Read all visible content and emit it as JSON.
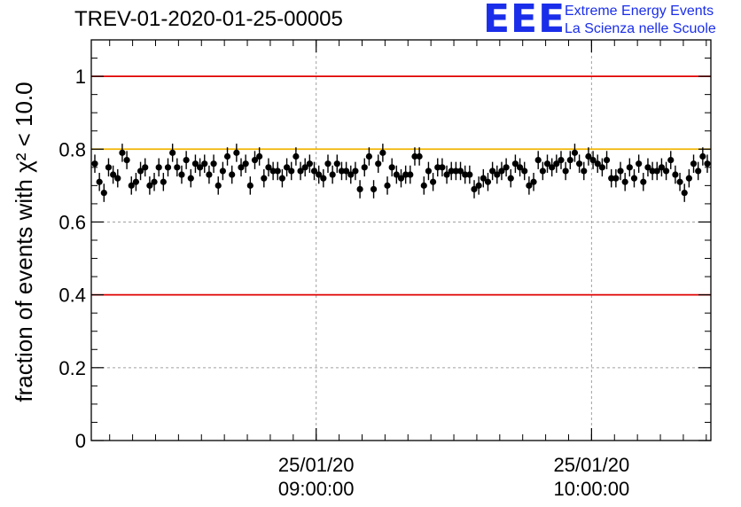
{
  "header": {
    "title": "TREV-01-2020-01-25-00005",
    "logo_text": "EEE",
    "logo_line1": "Extreme Energy Events",
    "logo_line2": "La Scienza nelle Scuole"
  },
  "colors": {
    "logo": "#1a2eea",
    "threshold_line": "#e00000",
    "reference_line": "#f0b400",
    "points": "#000000",
    "grid": "#a0a0a0"
  },
  "chart_data": {
    "type": "scatter",
    "title": "TREV-01-2020-01-25-00005",
    "xlabel": "",
    "ylabel": "fraction of events with χ² < 10.0",
    "ylim": [
      0,
      1.1
    ],
    "y_ticks": [
      "0",
      "0.2",
      "0.4",
      "0.6",
      "0.8",
      "1"
    ],
    "x_axis_type": "time",
    "x_range": [
      "25/01/20 08:11",
      "25/01/20 10:26"
    ],
    "x_tick_labels": [
      {
        "time": "25/01/20 09:00:00",
        "date": "25/01/20",
        "clock": "09:00:00"
      },
      {
        "time": "25/01/20 10:00:00",
        "date": "25/01/20",
        "clock": "10:00:00"
      }
    ],
    "grid": true,
    "horizontal_lines": [
      {
        "y": 1.0,
        "color": "#e00000"
      },
      {
        "y": 0.8,
        "color": "#f0b400"
      },
      {
        "y": 0.4,
        "color": "#e00000"
      }
    ],
    "error_bar": 0.025,
    "series": [
      {
        "marker": "circle",
        "color": "#000000",
        "values": [
          0.76,
          0.71,
          0.68,
          0.75,
          0.73,
          0.72,
          0.79,
          0.77,
          0.7,
          0.71,
          0.74,
          0.75,
          0.7,
          0.71,
          0.75,
          0.71,
          0.75,
          0.79,
          0.75,
          0.73,
          0.77,
          0.72,
          0.76,
          0.75,
          0.76,
          0.73,
          0.76,
          0.7,
          0.74,
          0.78,
          0.73,
          0.79,
          0.75,
          0.76,
          0.7,
          0.77,
          0.78,
          0.72,
          0.75,
          0.74,
          0.74,
          0.72,
          0.75,
          0.74,
          0.78,
          0.74,
          0.75,
          0.76,
          0.74,
          0.73,
          0.72,
          0.76,
          0.73,
          0.76,
          0.74,
          0.74,
          0.73,
          0.74,
          0.69,
          0.75,
          0.78,
          0.69,
          0.76,
          0.79,
          0.7,
          0.75,
          0.73,
          0.72,
          0.73,
          0.73,
          0.78,
          0.78,
          0.7,
          0.74,
          0.71,
          0.75,
          0.75,
          0.73,
          0.74,
          0.74,
          0.74,
          0.73,
          0.73,
          0.69,
          0.7,
          0.72,
          0.71,
          0.74,
          0.73,
          0.74,
          0.75,
          0.72,
          0.76,
          0.75,
          0.74,
          0.7,
          0.71,
          0.77,
          0.74,
          0.76,
          0.75,
          0.76,
          0.77,
          0.74,
          0.77,
          0.79,
          0.76,
          0.74,
          0.78,
          0.77,
          0.76,
          0.75,
          0.77,
          0.72,
          0.72,
          0.74,
          0.71,
          0.75,
          0.72,
          0.76,
          0.71,
          0.75,
          0.74,
          0.74,
          0.75,
          0.74,
          0.77,
          0.73,
          0.71,
          0.68,
          0.72,
          0.76,
          0.74,
          0.78,
          0.76
        ]
      }
    ]
  }
}
